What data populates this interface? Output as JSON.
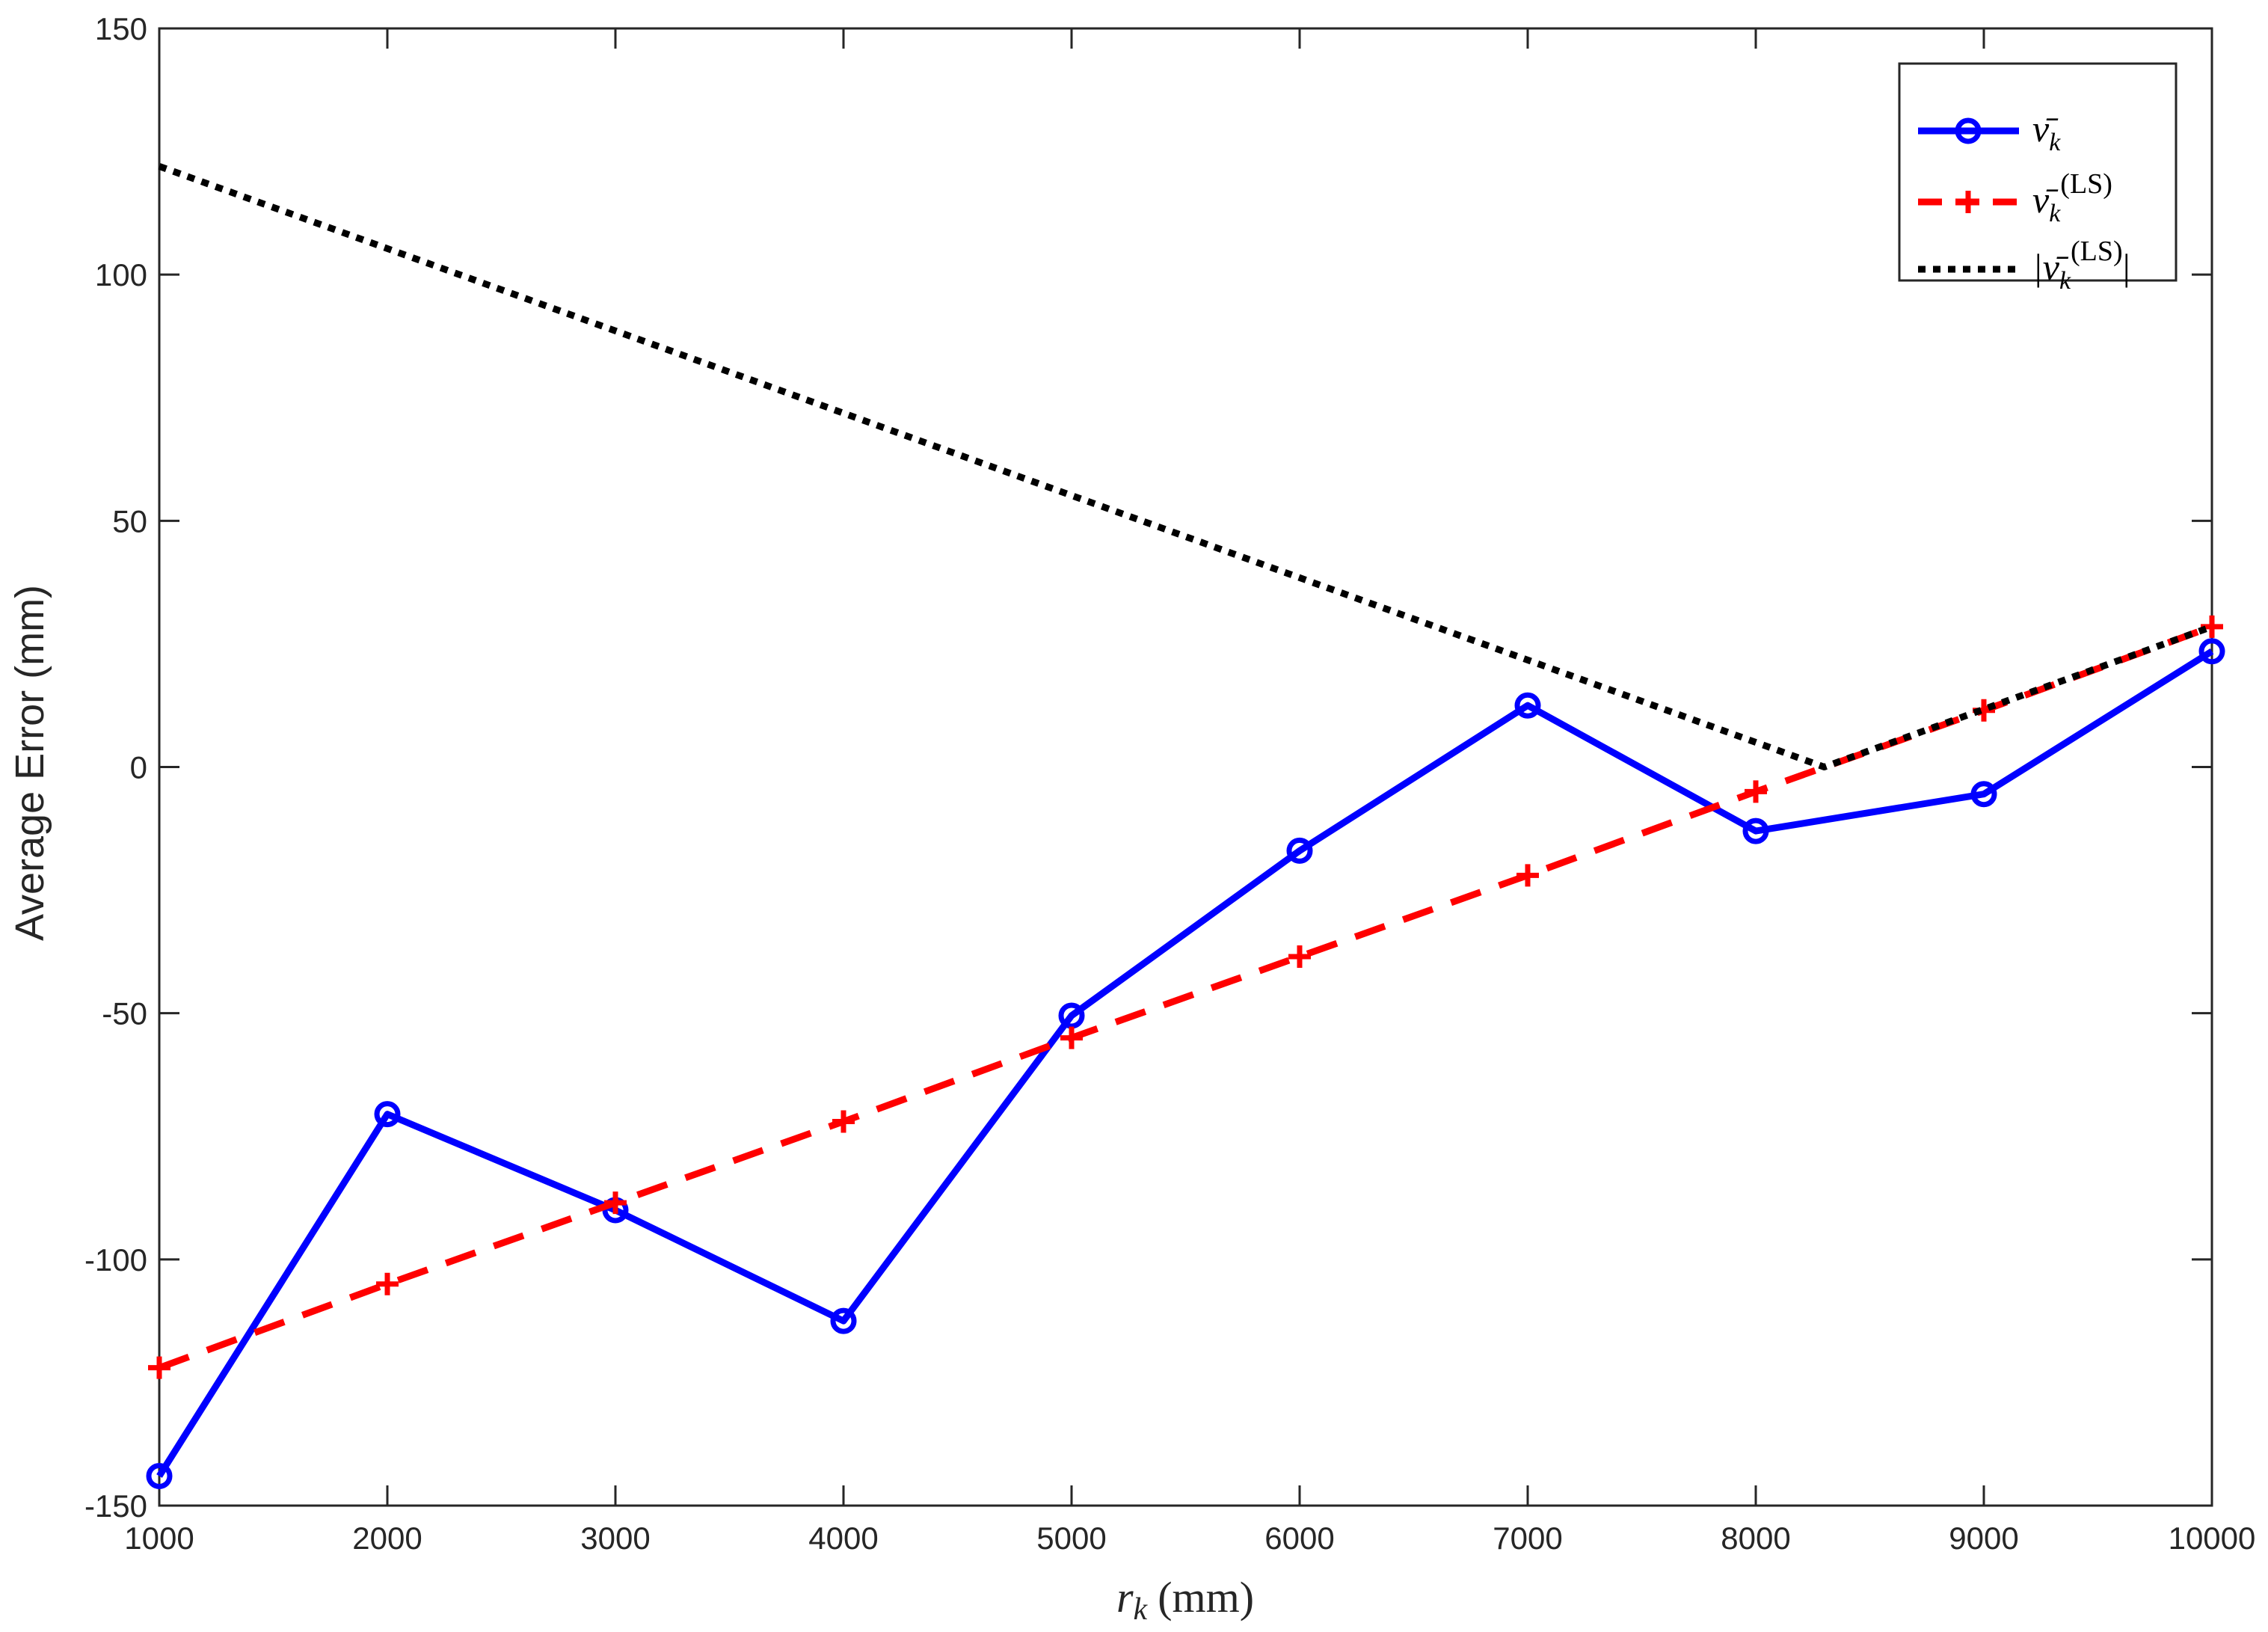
{
  "chart_data": {
    "type": "line",
    "title": "",
    "xlabel_var": "r",
    "xlabel_sub": "k",
    "xlabel_unit": "(mm)",
    "ylabel": "Average Error (mm)",
    "xlim": [
      1000,
      10000
    ],
    "ylim": [
      -150,
      150
    ],
    "xticks": [
      1000,
      2000,
      3000,
      4000,
      5000,
      6000,
      7000,
      8000,
      9000,
      10000
    ],
    "yticks": [
      -150,
      -100,
      -50,
      0,
      50,
      100,
      150
    ],
    "grid": false,
    "legend_position": "top-right",
    "series": [
      {
        "key": "nu",
        "legend": {
          "sym": "ν̄",
          "sub": "k",
          "sup": ""
        },
        "color": "#0000ff",
        "style": "solid",
        "marker": "circle",
        "x": [
          1000,
          2000,
          3000,
          4000,
          5000,
          6000,
          7000,
          8000,
          9000,
          10000
        ],
        "y": [
          -144,
          -70.5,
          -90,
          -112.5,
          -50.5,
          -17,
          12.5,
          -13,
          -5.5,
          23.5
        ]
      },
      {
        "key": "nu_ls",
        "legend": {
          "sym": "ν̄",
          "sub": "k",
          "sup": "(LS)"
        },
        "color": "#ff0000",
        "style": "dashed",
        "marker": "plus",
        "x": [
          1000,
          2000,
          3000,
          4000,
          5000,
          6000,
          7000,
          8000,
          9000,
          10000
        ],
        "y": [
          -122,
          -105,
          -88.5,
          -72,
          -55,
          -38.5,
          -22,
          -5,
          11.5,
          28.5
        ]
      },
      {
        "key": "abs_nu_ls",
        "legend": {
          "sym": "|ν̄",
          "sub": "k",
          "sup": "(LS)",
          "close": "|"
        },
        "color": "#000000",
        "style": "dotted",
        "marker": "none",
        "x": [
          1000,
          8300,
          10000
        ],
        "y": [
          122,
          0,
          28.5
        ]
      }
    ]
  }
}
